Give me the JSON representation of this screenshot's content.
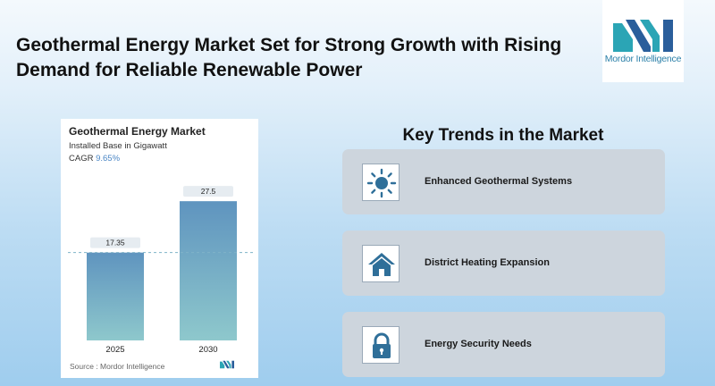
{
  "headline": "Geothermal Energy Market Set for Strong Growth with Rising Demand for Reliable Renewable Power",
  "logo": {
    "text": "Mordor Intelligence"
  },
  "chart_data": {
    "type": "bar",
    "title": "Geothermal Energy Market",
    "subtitle": "Installed Base in Gigawatt",
    "cagr_label": "CAGR",
    "cagr_value": "9.65%",
    "categories": [
      "2025",
      "2030"
    ],
    "values": [
      17.35,
      27.5
    ],
    "value_labels": [
      "17.35",
      "27.5"
    ],
    "ylim": [
      0,
      30
    ],
    "grid": false,
    "source": "Source : Mordor Intelligence",
    "colors": {
      "bar_top": "#5f94bf",
      "bar_bottom": "#8ec8cc",
      "label_bg": "#e6ecf1",
      "dashed": "#7fb3c8"
    }
  },
  "trends": {
    "title": "Key Trends in the Market",
    "items": [
      {
        "label": "Enhanced Geothermal Systems",
        "icon": "sun-icon"
      },
      {
        "label": "District Heating Expansion",
        "icon": "house-icon"
      },
      {
        "label": "Energy Security Needs",
        "icon": "lock-icon"
      }
    ]
  },
  "colors": {
    "icon": "#2f6f99",
    "card": "#cdd5dd",
    "brand_teal": "#2ba5b5",
    "brand_blue": "#2a5e9b"
  }
}
